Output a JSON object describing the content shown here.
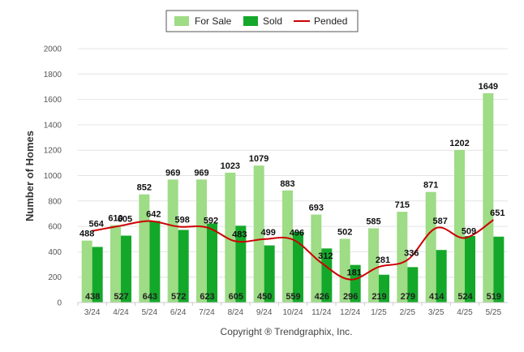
{
  "chart_data": {
    "type": "bar",
    "categories": [
      "3/24",
      "4/24",
      "5/24",
      "6/24",
      "7/24",
      "8/24",
      "9/24",
      "10/24",
      "11/24",
      "12/24",
      "1/25",
      "2/25",
      "3/25",
      "4/25",
      "5/25"
    ],
    "series": [
      {
        "name": "For Sale",
        "type": "bar",
        "color": "#9edc86",
        "values": [
          488,
          610,
          852,
          969,
          969,
          1023,
          1079,
          883,
          693,
          502,
          585,
          715,
          871,
          1202,
          1649
        ]
      },
      {
        "name": "Sold",
        "type": "bar",
        "color": "#14a82a",
        "values": [
          438,
          527,
          643,
          572,
          623,
          605,
          450,
          559,
          426,
          296,
          219,
          279,
          414,
          524,
          519
        ]
      },
      {
        "name": "Pended",
        "type": "line",
        "color": "#cc0000",
        "values": [
          564,
          605,
          642,
          598,
          592,
          483,
          499,
          496,
          312,
          181,
          281,
          336,
          587,
          509,
          651
        ]
      }
    ],
    "ylabel": "Number of Homes",
    "xlabel": "",
    "ylim": [
      0,
      2000
    ],
    "yticks": [
      0,
      200,
      400,
      600,
      800,
      1000,
      1200,
      1400,
      1600,
      1800,
      2000
    ],
    "grid": true,
    "legend": "top-center"
  },
  "copyright": "Copyright ® Trendgraphix, Inc."
}
